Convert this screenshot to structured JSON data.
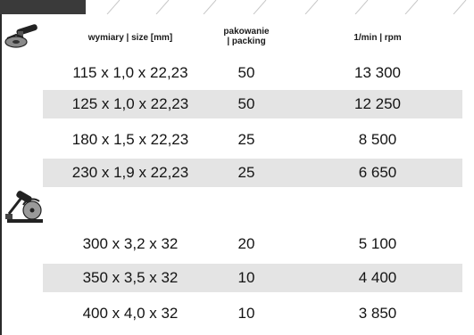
{
  "header": {
    "size_label": "wymiary | size [mm]",
    "packing_line1": "pakowanie",
    "packing_line2": "| packing",
    "rpm_label": "1/min | rpm"
  },
  "icons": {
    "group1": "angle-grinder-icon",
    "group2": "cut-off-saw-icon"
  },
  "colors": {
    "row_shade": "#e4e4e4",
    "header_band": "#3a3a3a"
  },
  "groups": [
    {
      "rows": [
        {
          "size": "115 x 1,0 x 22,23",
          "packing": "50",
          "rpm": "13 300",
          "shaded": false
        },
        {
          "size": "125 x 1,0 x 22,23",
          "packing": "50",
          "rpm": "12 250",
          "shaded": true
        },
        {
          "size": "180 x 1,5 x 22,23",
          "packing": "25",
          "rpm": "8 500",
          "shaded": false
        },
        {
          "size": "230 x 1,9 x 22,23",
          "packing": "25",
          "rpm": "6 650",
          "shaded": true
        }
      ]
    },
    {
      "rows": [
        {
          "size": "300 x 3,2 x 32",
          "packing": "20",
          "rpm": "5 100",
          "shaded": false
        },
        {
          "size": "350 x 3,5 x 32",
          "packing": "10",
          "rpm": "4 400",
          "shaded": true
        },
        {
          "size": "400 x 4,0 x 32",
          "packing": "10",
          "rpm": "3 850",
          "shaded": false
        }
      ]
    }
  ]
}
